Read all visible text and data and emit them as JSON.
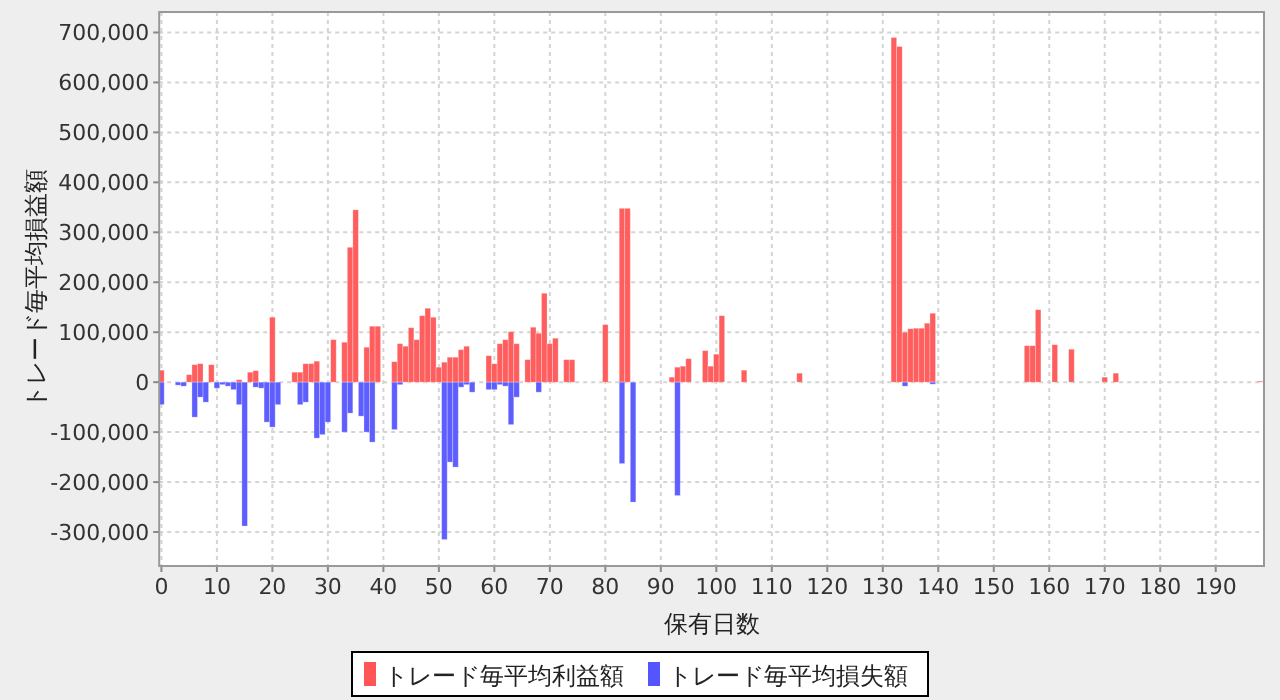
{
  "chart_data": {
    "type": "bar",
    "xlabel": "保有日数",
    "ylabel": "トレード毎平均損益額",
    "xlim": [
      -0.4,
      198.7
    ],
    "xticks": [
      0,
      10,
      20,
      30,
      40,
      50,
      60,
      70,
      80,
      90,
      100,
      110,
      120,
      130,
      140,
      150,
      160,
      170,
      180,
      190
    ],
    "ylim": [
      -368000,
      741000
    ],
    "yticks": [
      {
        "value": -300000,
        "label": "-300,000"
      },
      {
        "value": -200000,
        "label": "-200,000"
      },
      {
        "value": -100000,
        "label": "-100,000"
      },
      {
        "value": 0,
        "label": "0"
      },
      {
        "value": 100000,
        "label": "100,000"
      },
      {
        "value": 200000,
        "label": "200,000"
      },
      {
        "value": 300000,
        "label": "300,000"
      },
      {
        "value": 400000,
        "label": "400,000"
      },
      {
        "value": 500000,
        "label": "500,000"
      },
      {
        "value": 600000,
        "label": "600,000"
      },
      {
        "value": 700000,
        "label": "700,000"
      }
    ],
    "grid": true,
    "legend": "bottom",
    "series": [
      {
        "name": "トレード毎平均利益額",
        "color": "#ff5555",
        "x": [
          0,
          5,
          6,
          7,
          9,
          14,
          16,
          17,
          20,
          24,
          25,
          26,
          27,
          28,
          31,
          33,
          34,
          35,
          37,
          38,
          39,
          42,
          43,
          44,
          45,
          46,
          47,
          48,
          49,
          50,
          51,
          52,
          53,
          54,
          55,
          59,
          60,
          61,
          62,
          63,
          64,
          66,
          67,
          68,
          69,
          70,
          71,
          73,
          74,
          80,
          83,
          84,
          92,
          93,
          94,
          95,
          98,
          99,
          100,
          101,
          105,
          115,
          132,
          133,
          134,
          135,
          136,
          137,
          138,
          139,
          156,
          157,
          158,
          161,
          164,
          170,
          172,
          198
        ],
        "values": [
          24000,
          15000,
          35000,
          37000,
          35000,
          5000,
          20000,
          23000,
          130000,
          20000,
          20000,
          37000,
          37000,
          42000,
          85000,
          80000,
          270000,
          345000,
          70000,
          112000,
          112000,
          41000,
          77000,
          72000,
          109000,
          85000,
          133000,
          148000,
          130000,
          30000,
          40000,
          50000,
          50000,
          65000,
          72000,
          53000,
          37000,
          77000,
          85000,
          101000,
          77000,
          45000,
          110000,
          98000,
          178000,
          77000,
          88000,
          45000,
          45000,
          115000,
          348000,
          348000,
          10000,
          30000,
          32000,
          47000,
          63000,
          32000,
          56000,
          133000,
          24000,
          18000,
          690000,
          672000,
          100000,
          107000,
          108000,
          108000,
          118000,
          138000,
          73000,
          73000,
          145000,
          75000,
          66000,
          10000,
          18000,
          2000
        ]
      },
      {
        "name": "トレード毎平均損失額",
        "color": "#5555ff",
        "x": [
          0,
          3,
          4,
          6,
          7,
          8,
          10,
          11,
          12,
          13,
          14,
          15,
          17,
          18,
          19,
          20,
          21,
          25,
          26,
          28,
          29,
          30,
          33,
          34,
          36,
          37,
          38,
          42,
          43,
          51,
          52,
          53,
          54,
          55,
          56,
          59,
          60,
          61,
          62,
          63,
          64,
          68,
          83,
          85,
          93,
          134,
          139
        ],
        "values": [
          -45000,
          -6000,
          -8000,
          -70000,
          -30000,
          -40000,
          -12000,
          -5000,
          -8000,
          -15000,
          -45000,
          -288000,
          -10000,
          -12000,
          -80000,
          -90000,
          -45000,
          -45000,
          -40000,
          -112000,
          -105000,
          -80000,
          -100000,
          -62000,
          -68000,
          -100000,
          -120000,
          -95000,
          -5000,
          -315000,
          -160000,
          -170000,
          -10000,
          -5000,
          -20000,
          -15000,
          -15000,
          -5000,
          -8000,
          -85000,
          -30000,
          -20000,
          -163000,
          -240000,
          -227000,
          -8000,
          -4000
        ]
      }
    ]
  }
}
